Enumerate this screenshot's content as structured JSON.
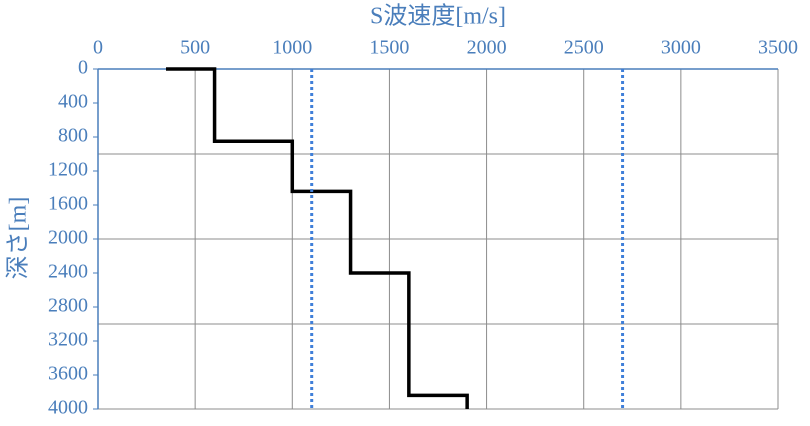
{
  "chart_data": {
    "type": "line",
    "x_label": "S波速度[m/s]",
    "y_label": "深さ[m]",
    "xlim": [
      0,
      3500
    ],
    "ylim": [
      0,
      4000
    ],
    "y_inverted": true,
    "x_axis_position": "top",
    "xticks": [
      0,
      500,
      1000,
      1500,
      2000,
      2500,
      3000,
      3500
    ],
    "yticks": [
      0,
      400,
      800,
      1200,
      1600,
      2000,
      2400,
      2800,
      3200,
      3600,
      4000
    ],
    "ygrid": [
      1000,
      2000,
      3000,
      4000
    ],
    "grid": true,
    "series": [
      {
        "color": "#000000",
        "dash": "solid",
        "x": [
          350,
          600,
          600,
          1000,
          1000,
          1300,
          1300,
          1600,
          1600,
          1900,
          1900
        ],
        "values": [
          0,
          0,
          850,
          850,
          1440,
          1440,
          2400,
          2400,
          3840,
          3840,
          4000
        ]
      },
      {
        "color": "#3f7fd9",
        "dash": "dotted",
        "x": [
          1100,
          1100
        ],
        "values": [
          0,
          4000
        ]
      },
      {
        "color": "#3f7fd9",
        "dash": "dotted",
        "x": [
          2700,
          2700
        ],
        "values": [
          0,
          4000
        ]
      }
    ]
  }
}
